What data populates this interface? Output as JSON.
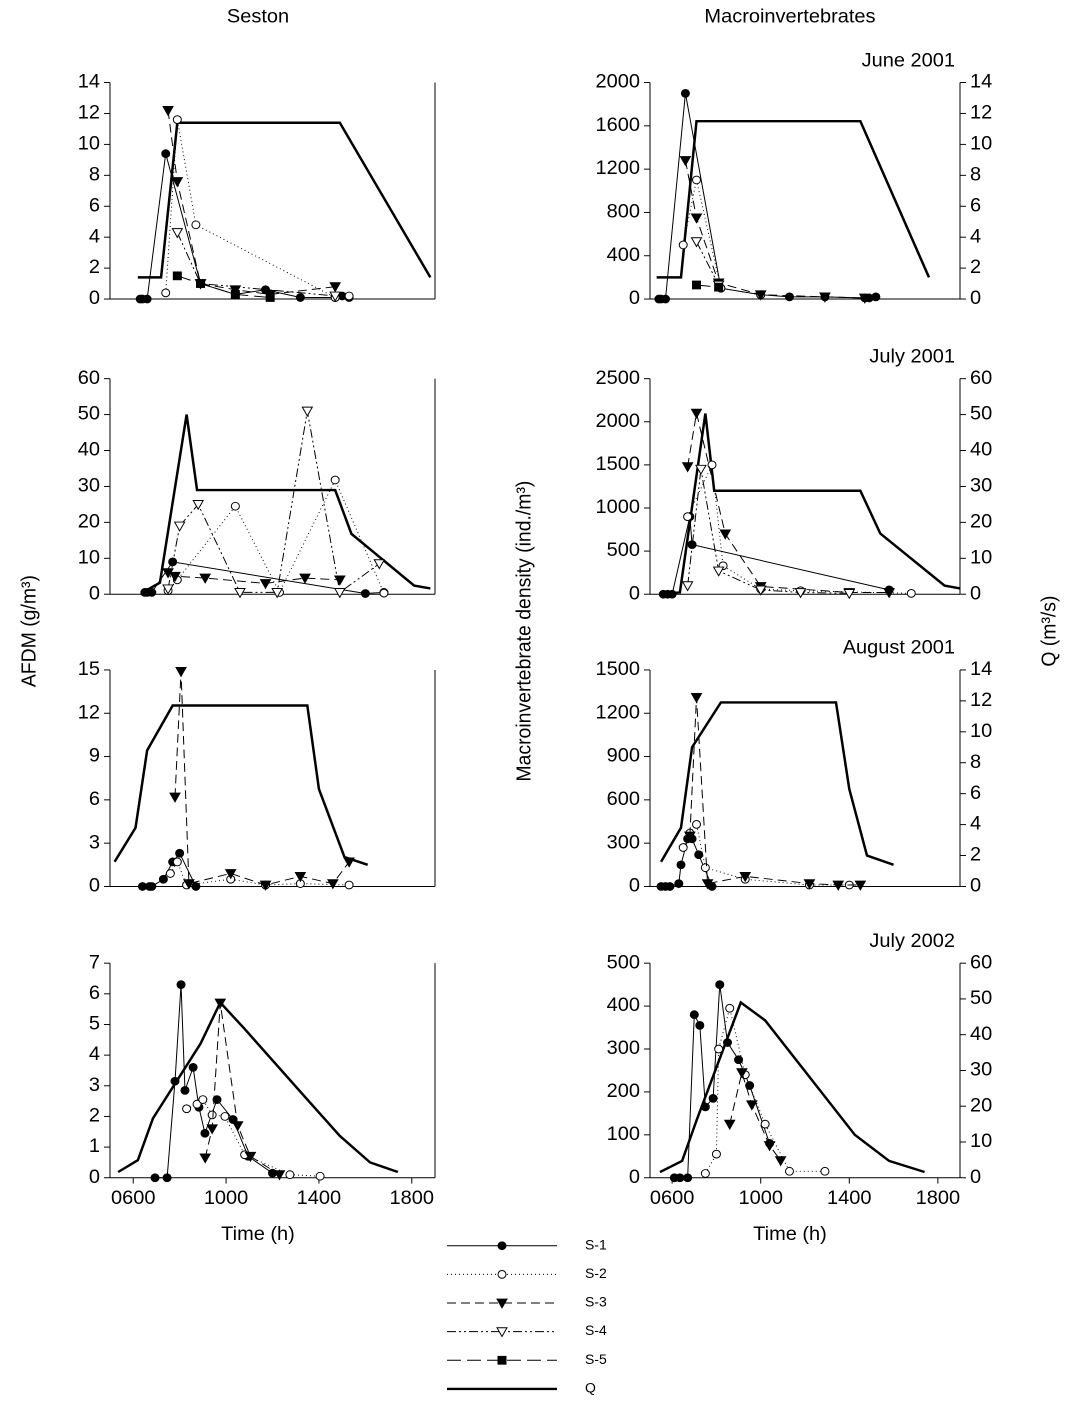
{
  "header": {
    "columns": [
      "Seston",
      "Macroinvertebrates"
    ]
  },
  "axis_labels": {
    "left": "AFDM (g/m³)",
    "middle": "Macroinvertebrate density (ind./m³)",
    "right": "Q (m³/s)",
    "x": "Time (h)"
  },
  "legend": [
    {
      "name": "S-1",
      "marker": "circle",
      "filled": true,
      "dash": "none",
      "width": 1
    },
    {
      "name": "S-2",
      "marker": "circle",
      "filled": false,
      "dash": "1,3",
      "width": 1
    },
    {
      "name": "S-3",
      "marker": "triangle-down",
      "filled": true,
      "dash": "9,5",
      "width": 1
    },
    {
      "name": "S-4",
      "marker": "triangle-down",
      "filled": false,
      "dash": "9,3,2,3,2,3",
      "width": 1
    },
    {
      "name": "S-5",
      "marker": "square",
      "filled": true,
      "dash": "14,6",
      "width": 1
    },
    {
      "name": "Q",
      "marker": "none",
      "filled": false,
      "dash": "none",
      "width": 2.5
    }
  ],
  "chart_data": [
    {
      "type": "line",
      "xlim": [
        5,
        19
      ],
      "ylim": [
        0,
        14
      ],
      "yticks": [
        0,
        2,
        4,
        6,
        8,
        10,
        12,
        14
      ],
      "y2lim": [
        0,
        14
      ],
      "series": [
        {
          "name": "Q",
          "axis": "y2",
          "x": [
            6.2,
            7.2,
            7.9,
            14.9,
            18.8
          ],
          "values": [
            1.4,
            1.4,
            11.4,
            11.4,
            1.4
          ]
        },
        {
          "name": "S-1",
          "x": [
            6.3,
            6.4,
            6.6,
            7.4,
            8.9,
            10.4,
            11.7,
            13.2,
            14.7,
            15.0,
            15.3
          ],
          "values": [
            0,
            0,
            0,
            9.4,
            1,
            0.3,
            0.6,
            0.1,
            0.1,
            0.2,
            0.1
          ]
        },
        {
          "name": "S-2",
          "x": [
            7.4,
            7.9,
            8.7,
            14.7,
            15.3
          ],
          "values": [
            0.4,
            11.6,
            4.8,
            0.1,
            0.2
          ]
        },
        {
          "name": "S-3",
          "x": [
            7.5,
            7.9,
            8.9,
            10.4,
            11.9,
            14.7
          ],
          "values": [
            12.2,
            7.6,
            1,
            0.6,
            0.3,
            0.8
          ]
        },
        {
          "name": "S-4",
          "x": [
            7.9,
            8.9,
            14.7
          ],
          "values": [
            4.3,
            1,
            0.2
          ]
        },
        {
          "name": "S-5",
          "x": [
            7.9,
            8.9,
            10.4,
            11.9
          ],
          "values": [
            1.5,
            1.0,
            0.3,
            0.1
          ]
        }
      ]
    },
    {
      "type": "line",
      "title": "June 2001",
      "xlim": [
        5,
        19
      ],
      "ylim": [
        0,
        2000
      ],
      "yticks": [
        0,
        400,
        800,
        1200,
        1600,
        2000
      ],
      "y2lim": [
        0,
        14
      ],
      "y2ticks": [
        0,
        2,
        4,
        6,
        8,
        10,
        12,
        14
      ],
      "series": [
        {
          "name": "Q",
          "axis": "y2",
          "x": [
            5.3,
            6.4,
            7.1,
            14.5,
            17.6
          ],
          "values": [
            1.4,
            1.4,
            11.5,
            11.5,
            1.4
          ]
        },
        {
          "name": "S-1",
          "x": [
            5.4,
            5.5,
            5.7,
            6.6,
            8.2,
            10.0,
            11.3,
            12.9,
            14.7,
            14.9,
            15.2
          ],
          "values": [
            0,
            0,
            0,
            1900,
            100,
            40,
            20,
            20,
            10,
            10,
            20
          ]
        },
        {
          "name": "S-2",
          "x": [
            6.5,
            7.1,
            8.2,
            10.0
          ],
          "values": [
            500,
            1100,
            100,
            40
          ]
        },
        {
          "name": "S-3",
          "x": [
            6.6,
            7.1,
            8.1,
            10.0,
            12.9,
            14.7
          ],
          "values": [
            1280,
            750,
            150,
            40,
            20,
            10
          ]
        },
        {
          "name": "S-4",
          "x": [
            7.1,
            8.1
          ],
          "values": [
            530,
            130
          ]
        },
        {
          "name": "S-5",
          "x": [
            7.1,
            8.1
          ],
          "values": [
            130,
            110
          ]
        }
      ]
    },
    {
      "type": "line",
      "xlim": [
        5,
        19
      ],
      "ylim": [
        0,
        60
      ],
      "yticks": [
        0,
        10,
        20,
        30,
        40,
        50,
        60
      ],
      "y2lim": [
        0,
        60
      ],
      "series": [
        {
          "name": "Q",
          "axis": "y2",
          "x": [
            6.4,
            7.15,
            8.3,
            8.75,
            14.7,
            15.4,
            18.1,
            18.8
          ],
          "values": [
            0.5,
            3.2,
            50,
            29,
            29,
            16.8,
            2.4,
            1.6
          ]
        },
        {
          "name": "S-1",
          "x": [
            6.5,
            6.6,
            6.8,
            7.7,
            16.0,
            16.8
          ],
          "values": [
            0.5,
            0.5,
            0.5,
            9,
            0.2,
            0.5
          ]
        },
        {
          "name": "S-2",
          "x": [
            7.5,
            7.9,
            10.4,
            12.3,
            14.7,
            16.8
          ],
          "values": [
            1,
            4,
            24.5,
            0.5,
            31.8,
            0.3
          ]
        },
        {
          "name": "S-3",
          "x": [
            7.5,
            7.8,
            9.1,
            11.7,
            13.4,
            14.9
          ],
          "values": [
            6,
            5,
            4.5,
            3,
            4.5,
            4
          ]
        },
        {
          "name": "S-4",
          "x": [
            7.5,
            8.0,
            8.8,
            10.6,
            12.2,
            13.5,
            14.9,
            16.6
          ],
          "values": [
            1.5,
            19,
            25,
            0.5,
            0.5,
            51,
            0.5,
            8.5
          ]
        }
      ]
    },
    {
      "type": "line",
      "title": "July 2001",
      "xlim": [
        5,
        19
      ],
      "ylim": [
        0,
        2500
      ],
      "yticks": [
        0,
        500,
        1000,
        1500,
        2000,
        2500
      ],
      "y2lim": [
        0,
        60
      ],
      "y2ticks": [
        0,
        10,
        20,
        30,
        40,
        50,
        60
      ],
      "series": [
        {
          "name": "Q",
          "axis": "y2",
          "x": [
            5.45,
            6.35,
            7.5,
            7.9,
            14.5,
            15.4,
            18.3,
            19.0
          ],
          "values": [
            0,
            0.5,
            50.3,
            28.8,
            28.8,
            16.9,
            2.4,
            1.6
          ]
        },
        {
          "name": "S-1",
          "x": [
            5.6,
            5.8,
            6.0,
            6.8,
            6.9,
            15.8
          ],
          "values": [
            0,
            0,
            0,
            900,
            575,
            50
          ]
        },
        {
          "name": "S-2",
          "x": [
            6.7,
            7.8,
            8.3,
            10.0,
            11.8,
            16.8
          ],
          "values": [
            900,
            1500,
            330,
            60,
            40,
            10
          ]
        },
        {
          "name": "S-3",
          "x": [
            6.7,
            7.1,
            8.4,
            10.0,
            14.0,
            15.8
          ],
          "values": [
            1480,
            2100,
            700,
            90,
            20,
            20
          ]
        },
        {
          "name": "S-4",
          "x": [
            6.7,
            7.3,
            8.1,
            10.0,
            11.8,
            14.0
          ],
          "values": [
            100,
            1450,
            270,
            50,
            20,
            10
          ]
        }
      ]
    },
    {
      "type": "line",
      "xlim": [
        5,
        19
      ],
      "ylim": [
        0,
        15
      ],
      "yticks": [
        0,
        3,
        6,
        9,
        12,
        15
      ],
      "y2lim": [
        0,
        14
      ],
      "series": [
        {
          "name": "Q",
          "axis": "y2",
          "x": [
            5.2,
            6.1,
            6.6,
            7.7,
            13.5,
            14.0,
            15.1,
            16.1
          ],
          "values": [
            1.6,
            3.8,
            8.8,
            11.7,
            11.7,
            6.3,
            1.9,
            1.4
          ]
        },
        {
          "name": "S-1",
          "x": [
            6.4,
            6.7,
            6.8,
            7.3,
            7.7,
            8.0,
            8.7
          ],
          "values": [
            0,
            0,
            0,
            0.5,
            1.7,
            2.3,
            0
          ]
        },
        {
          "name": "S-2",
          "x": [
            7.6,
            7.9,
            8.3,
            10.2,
            11.7,
            13.2,
            15.3
          ],
          "values": [
            0.9,
            1.7,
            0.1,
            0.5,
            0.1,
            0.2,
            0.1
          ]
        },
        {
          "name": "S-3",
          "x": [
            7.8,
            8.06,
            8.4,
            10.2,
            11.7,
            13.2,
            14.6,
            15.3
          ],
          "values": [
            6.2,
            14.9,
            0.2,
            0.9,
            0.1,
            0.7,
            0.2,
            1.7
          ]
        }
      ]
    },
    {
      "type": "line",
      "title": "August 2001",
      "xlim": [
        5,
        19
      ],
      "ylim": [
        0,
        1500
      ],
      "yticks": [
        0,
        300,
        600,
        900,
        1200,
        1500
      ],
      "y2lim": [
        0,
        14
      ],
      "y2ticks": [
        0,
        2,
        4,
        6,
        8,
        10,
        12,
        14
      ],
      "series": [
        {
          "name": "Q",
          "axis": "y2",
          "x": [
            5.5,
            6.4,
            6.9,
            8.2,
            13.4,
            14.0,
            14.8,
            16.0
          ],
          "values": [
            1.6,
            3.8,
            9.0,
            11.9,
            11.9,
            6.3,
            2.0,
            1.4
          ]
        },
        {
          "name": "S-1",
          "x": [
            5.5,
            5.7,
            5.9,
            6.3,
            6.4,
            6.7,
            6.9,
            7.2,
            7.8
          ],
          "values": [
            0,
            0,
            0,
            20,
            150,
            330,
            330,
            220,
            0
          ]
        },
        {
          "name": "S-2",
          "x": [
            6.5,
            6.8,
            7.1,
            7.5,
            9.3,
            12.2,
            14.0
          ],
          "values": [
            270,
            370,
            430,
            130,
            50,
            10,
            10
          ]
        },
        {
          "name": "S-3",
          "x": [
            6.8,
            7.1,
            7.6,
            9.3,
            12.2,
            13.5,
            14.5
          ],
          "values": [
            350,
            1310,
            20,
            70,
            20,
            10,
            10
          ]
        }
      ]
    },
    {
      "type": "line",
      "xlim": [
        5,
        19
      ],
      "ylim": [
        0,
        7
      ],
      "yticks": [
        0,
        1,
        2,
        3,
        4,
        5,
        6,
        7
      ],
      "y2lim": [
        0,
        60
      ],
      "xticks": [
        {
          "value": 6,
          "label": "0600"
        },
        {
          "value": 10,
          "label": "1000"
        },
        {
          "value": 14,
          "label": "1400"
        },
        {
          "value": 18,
          "label": "1800"
        }
      ],
      "series": [
        {
          "name": "Q",
          "axis": "y2",
          "x": [
            5.35,
            6.2,
            6.85,
            8.9,
            9.75,
            10.8,
            13.4,
            14.9,
            16.2,
            17.4
          ],
          "values": [
            1.6,
            4.9,
            16.6,
            37.5,
            49,
            41.6,
            22.6,
            11.7,
            4.3,
            1.6
          ]
        },
        {
          "name": "S-1",
          "x": [
            6.94,
            7.46,
            7.8,
            8.06,
            8.23,
            8.58,
            8.83,
            9.09,
            9.61,
            10.3,
            10.95,
            12.0
          ],
          "values": [
            0,
            0,
            3.15,
            6.3,
            2.85,
            3.6,
            2.3,
            1.45,
            2.55,
            1.9,
            0.7,
            0.15
          ]
        },
        {
          "name": "S-2",
          "x": [
            8.3,
            8.75,
            9.0,
            9.4,
            9.95,
            10.8,
            12.75,
            14.05
          ],
          "values": [
            2.25,
            2.4,
            2.55,
            2.05,
            2.0,
            0.75,
            0.1,
            0.05
          ]
        },
        {
          "name": "S-3",
          "x": [
            9.1,
            9.4,
            9.75,
            10.5,
            11.05,
            12.3
          ],
          "values": [
            0.65,
            1.6,
            5.7,
            1.7,
            0.7,
            0.1
          ]
        }
      ]
    },
    {
      "type": "line",
      "title": "July 2002",
      "xlim": [
        5,
        19
      ],
      "ylim": [
        0,
        500
      ],
      "yticks": [
        0,
        100,
        200,
        300,
        400,
        500
      ],
      "y2lim": [
        0,
        60
      ],
      "y2ticks": [
        0,
        10,
        20,
        30,
        40,
        50,
        60
      ],
      "xticks": [
        {
          "value": 6,
          "label": "0600"
        },
        {
          "value": 10,
          "label": "1000"
        },
        {
          "value": 14,
          "label": "1400"
        },
        {
          "value": 18,
          "label": "1800"
        }
      ],
      "series": [
        {
          "name": "Q",
          "axis": "y2",
          "x": [
            5.45,
            6.45,
            7.1,
            9.1,
            10.2,
            14.25,
            15.8,
            17.4
          ],
          "values": [
            1.6,
            4.7,
            16,
            49,
            44,
            12,
            4.7,
            1.6
          ]
        },
        {
          "name": "S-1",
          "x": [
            6.1,
            6.35,
            6.7,
            7.0,
            7.25,
            7.5,
            7.85,
            8.15,
            8.5,
            9.0,
            9.5,
            10.4
          ],
          "values": [
            0,
            0,
            0,
            380,
            355,
            165,
            185,
            450,
            315,
            275,
            215,
            80
          ]
        },
        {
          "name": "S-2",
          "x": [
            7.5,
            8.0,
            8.1,
            8.6,
            9.3,
            10.2,
            11.3,
            12.9
          ],
          "values": [
            10,
            55,
            300,
            395,
            240,
            125,
            15,
            15
          ]
        },
        {
          "name": "S-3",
          "x": [
            8.6,
            9.15,
            9.6,
            10.4,
            10.9
          ],
          "values": [
            125,
            245,
            170,
            75,
            40
          ]
        }
      ]
    }
  ]
}
